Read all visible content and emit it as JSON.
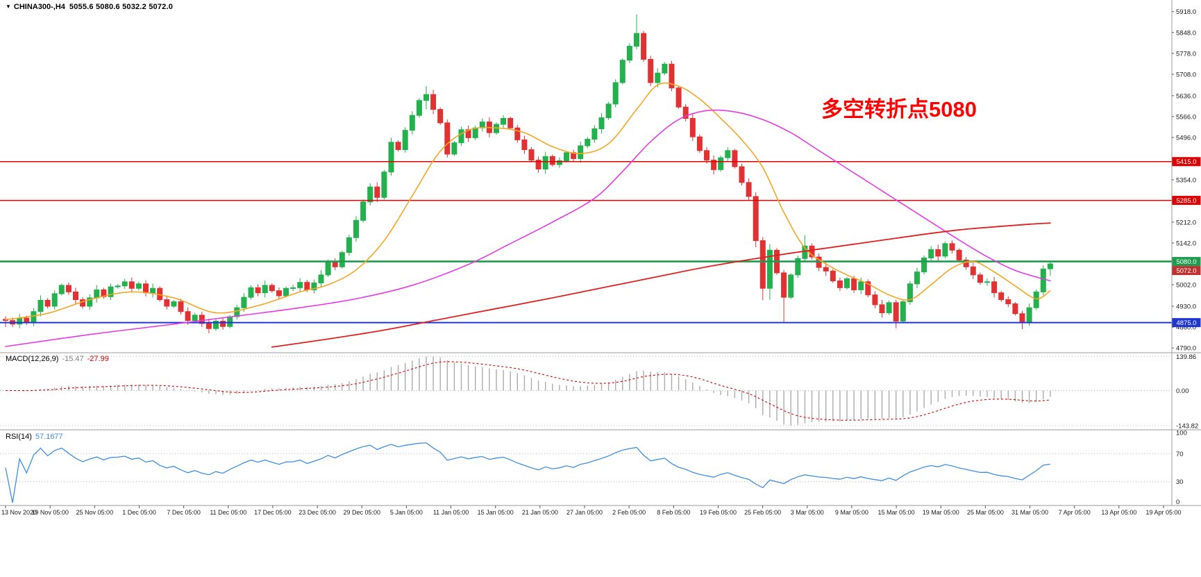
{
  "window": {
    "collapse_icon": "▼",
    "title_symbol": "CHINA300-,H4",
    "ohlc": "5055.6 5080.6 5032.2 5072.0"
  },
  "annotation": {
    "text": "多空转折点5080",
    "color": "#FF0000"
  },
  "colors": {
    "background": "#FFFFFF",
    "up": "#22B14C",
    "down": "#E03232",
    "ma_fast": "#F5A623",
    "ma_mid": "#E53AE5",
    "ma_slow": "#E02020",
    "macd_hist": "#ABABAB",
    "macd_signal": "#D40000",
    "macd_value_main": "#808080",
    "rsi_line": "#3E8EDE",
    "axis_text": "#1A1A1A",
    "separator": "#9A9A9A"
  },
  "chart_data": {
    "type": "candlestick",
    "symbol": "CHINA300-",
    "timeframe": "H4",
    "last_ohlc": {
      "open": 5055.6,
      "high": 5080.6,
      "low": 5032.2,
      "close": 5072.0
    },
    "y_ticks": [
      5918.0,
      5848.0,
      5778.0,
      5708.0,
      5636.0,
      5566.0,
      5496.0,
      5424.0,
      5354.0,
      5284.0,
      5212.0,
      5142.0,
      5072.0,
      5002.0,
      4930.0,
      4860.0,
      4790.0
    ],
    "hidden_ticks": [
      5424.0,
      5284.0,
      5072.0
    ],
    "y_domain": [
      4774,
      5957
    ],
    "x_labels": [
      "13 Nov 2020",
      "19 Nov 05:00",
      "25 Nov 05:00",
      "1 Dec 05:00",
      "7 Dec 05:00",
      "11 Dec 05:00",
      "17 Dec 05:00",
      "23 Dec 05:00",
      "29 Dec 05:00",
      "5 Jan 05:00",
      "11 Jan 05:00",
      "15 Jan 05:00",
      "21 Jan 05:00",
      "27 Jan 05:00",
      "2 Feb 05:00",
      "8 Feb 05:00",
      "19 Feb 05:00",
      "25 Feb 05:00",
      "3 Mar 05:00",
      "9 Mar 05:00",
      "15 Mar 05:00",
      "19 Mar 05:00",
      "25 Mar 05:00",
      "31 Mar 05:00",
      "7 Apr 05:00",
      "13 Apr 05:00",
      "19 Apr 05:00"
    ],
    "first_open": 4886,
    "closes": [
      4882,
      4870,
      4890,
      4875,
      4912,
      4950,
      4930,
      4972,
      5000,
      4978,
      4952,
      4930,
      4958,
      4985,
      4962,
      4995,
      4998,
      5012,
      4990,
      5005,
      4975,
      4990,
      4952,
      4930,
      4945,
      4912,
      4882,
      4900,
      4872,
      4855,
      4880,
      4862,
      4895,
      4925,
      4960,
      4992,
      4975,
      5000,
      4982,
      4965,
      4990,
      4992,
      5010,
      4985,
      5008,
      5035,
      5080,
      5062,
      5110,
      5160,
      5218,
      5280,
      5330,
      5295,
      5380,
      5480,
      5455,
      5520,
      5570,
      5620,
      5640,
      5590,
      5545,
      5440,
      5478,
      5522,
      5495,
      5528,
      5548,
      5512,
      5540,
      5560,
      5528,
      5488,
      5455,
      5420,
      5390,
      5432,
      5405,
      5418,
      5445,
      5425,
      5468,
      5490,
      5525,
      5562,
      5608,
      5680,
      5755,
      5802,
      5845,
      5758,
      5680,
      5712,
      5742,
      5662,
      5598,
      5560,
      5498,
      5452,
      5420,
      5388,
      5428,
      5452,
      5398,
      5345,
      5298,
      5150,
      4990,
      5118,
      5042,
      4960,
      5035,
      5090,
      5132,
      5095,
      5060,
      5048,
      5015,
      4992,
      5022,
      4985,
      5012,
      4968,
      4935,
      4908,
      4942,
      4880,
      4945,
      5005,
      5045,
      5092,
      5120,
      5098,
      5140,
      5118,
      5085,
      5062,
      5035,
      5010,
      5012,
      4975,
      4952,
      4938,
      4905,
      4878,
      4925,
      4978,
      5055,
      5072
    ],
    "wick_cycle": [
      6,
      10,
      14,
      8,
      12,
      16,
      7,
      11
    ],
    "candle_overrides": {
      "0": [
        4886,
        4896,
        4860,
        4882
      ],
      "55": [
        5380,
        5495,
        5368,
        5480
      ],
      "60": [
        5620,
        5668,
        5590,
        5640
      ],
      "90": [
        5802,
        5908,
        5792,
        5845
      ],
      "107": [
        5298,
        5312,
        5128,
        5150
      ],
      "108": [
        5150,
        5162,
        4950,
        4990
      ],
      "109": [
        4990,
        5138,
        4952,
        5118
      ],
      "111": [
        5042,
        5052,
        4876,
        4960
      ],
      "114": [
        5090,
        5168,
        5082,
        5132
      ],
      "127": [
        4942,
        4952,
        4856,
        4880
      ],
      "145": [
        4905,
        4915,
        4853,
        4878
      ],
      "149": [
        5055.6,
        5080.6,
        5032.2,
        5072.0
      ]
    },
    "levels": [
      {
        "name": "resistance-5415",
        "value": 5415.0,
        "label": "5415.0",
        "color": "#DD0000",
        "width": 1.5
      },
      {
        "name": "resistance-5285",
        "value": 5285.0,
        "label": "5285.0",
        "color": "#DD0000",
        "width": 1.5
      },
      {
        "name": "pivot-5080",
        "value": 5080.0,
        "label": "5080.0",
        "color": "#1E9B4E",
        "width": 2.6
      },
      {
        "name": "support-4875",
        "value": 4875.0,
        "label": "4875.0",
        "color": "#2036D0",
        "width": 2.1
      }
    ],
    "current_price": {
      "value": 5072.0,
      "label": "5072.0",
      "color": "#C03030"
    },
    "ma_lines": [
      {
        "name": "ma-fast-orange",
        "color": "#F5A623",
        "width": 1.6,
        "points": [
          [
            0,
            4885
          ],
          [
            6,
            4906
          ],
          [
            12,
            4952
          ],
          [
            18,
            4978
          ],
          [
            24,
            4958
          ],
          [
            30,
            4908
          ],
          [
            36,
            4932
          ],
          [
            42,
            4978
          ],
          [
            46,
            5002
          ],
          [
            50,
            5052
          ],
          [
            54,
            5150
          ],
          [
            58,
            5300
          ],
          [
            62,
            5450
          ],
          [
            66,
            5520
          ],
          [
            70,
            5528
          ],
          [
            74,
            5512
          ],
          [
            78,
            5465
          ],
          [
            82,
            5442
          ],
          [
            86,
            5475
          ],
          [
            90,
            5590
          ],
          [
            93,
            5672
          ],
          [
            96,
            5668
          ],
          [
            99,
            5625
          ],
          [
            102,
            5560
          ],
          [
            105,
            5488
          ],
          [
            108,
            5395
          ],
          [
            111,
            5245
          ],
          [
            114,
            5125
          ],
          [
            117,
            5072
          ],
          [
            120,
            5035
          ],
          [
            123,
            5005
          ],
          [
            126,
            4968
          ],
          [
            129,
            4952
          ],
          [
            132,
            5002
          ],
          [
            135,
            5058
          ],
          [
            138,
            5080
          ],
          [
            141,
            5045
          ],
          [
            144,
            4998
          ],
          [
            147,
            4955
          ],
          [
            149,
            4982
          ]
        ]
      },
      {
        "name": "ma-mid-magenta",
        "color": "#E53AE5",
        "width": 1.6,
        "points": [
          [
            0,
            4795
          ],
          [
            12,
            4835
          ],
          [
            24,
            4870
          ],
          [
            34,
            4900
          ],
          [
            42,
            4925
          ],
          [
            50,
            4955
          ],
          [
            58,
            5000
          ],
          [
            66,
            5070
          ],
          [
            72,
            5140
          ],
          [
            78,
            5212
          ],
          [
            84,
            5292
          ],
          [
            88,
            5382
          ],
          [
            92,
            5482
          ],
          [
            96,
            5556
          ],
          [
            100,
            5586
          ],
          [
            104,
            5582
          ],
          [
            108,
            5556
          ],
          [
            112,
            5512
          ],
          [
            116,
            5452
          ],
          [
            120,
            5392
          ],
          [
            124,
            5332
          ],
          [
            128,
            5272
          ],
          [
            132,
            5212
          ],
          [
            136,
            5152
          ],
          [
            140,
            5096
          ],
          [
            144,
            5050
          ],
          [
            149,
            5015
          ]
        ]
      },
      {
        "name": "ma-slow-red",
        "color": "#E02020",
        "width": 1.8,
        "points": [
          [
            38,
            4793
          ],
          [
            46,
            4820
          ],
          [
            54,
            4850
          ],
          [
            62,
            4886
          ],
          [
            70,
            4922
          ],
          [
            78,
            4958
          ],
          [
            86,
            4996
          ],
          [
            94,
            5034
          ],
          [
            100,
            5062
          ],
          [
            106,
            5086
          ],
          [
            112,
            5108
          ],
          [
            118,
            5128
          ],
          [
            124,
            5148
          ],
          [
            130,
            5168
          ],
          [
            136,
            5186
          ],
          [
            142,
            5198
          ],
          [
            146,
            5205
          ],
          [
            149,
            5209
          ]
        ]
      }
    ],
    "macd": {
      "label": "MACD(12,26,9)",
      "value_main": "-15.47",
      "value_signal": "-27.99",
      "fast": 12,
      "slow": 26,
      "signal": 9,
      "axis_labels": [
        "139.86",
        "0.00",
        "-143.82"
      ],
      "axis_values": [
        139.86,
        0,
        -143.82
      ],
      "y_domain": [
        -158,
        152
      ]
    },
    "rsi": {
      "label": "RSI(14)",
      "value": "57.1677",
      "period": 14,
      "axis_labels": [
        "100",
        "70",
        "30",
        "0"
      ],
      "axis_values": [
        100,
        70,
        30,
        0
      ],
      "dotted_levels": [
        70,
        30
      ],
      "y_domain": [
        -3,
        103
      ]
    }
  }
}
